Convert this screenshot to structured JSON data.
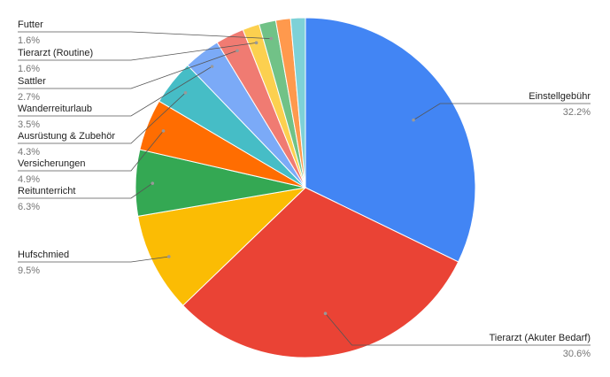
{
  "chart_data": {
    "type": "pie",
    "categories": [
      "Einstellgebühr",
      "Tierarzt (Akuter Bedarf)",
      "Hufschmied",
      "Reitunterricht",
      "Versicherungen",
      "Ausrüstung & Zubehör",
      "Wanderreiturlaub",
      "Sattler",
      "Tierarzt (Routine)",
      "Futter",
      null,
      null
    ],
    "values": [
      32.2,
      30.6,
      9.5,
      6.3,
      4.9,
      4.3,
      3.5,
      2.7,
      1.6,
      1.6,
      1.4,
      1.4
    ],
    "value_labels": [
      "32.2%",
      "30.6%",
      "9.5%",
      "6.3%",
      "4.9%",
      "4.3%",
      "3.5%",
      "2.7%",
      "1.6%",
      "1.6%",
      null,
      null
    ],
    "colors": [
      "#4285f4",
      "#ea4335",
      "#fbbc04",
      "#34a853",
      "#ff6d01",
      "#46bdc6",
      "#7baaf7",
      "#f07b72",
      "#fcd04f",
      "#71c287",
      "#ff994d",
      "#7ed1d7"
    ]
  }
}
